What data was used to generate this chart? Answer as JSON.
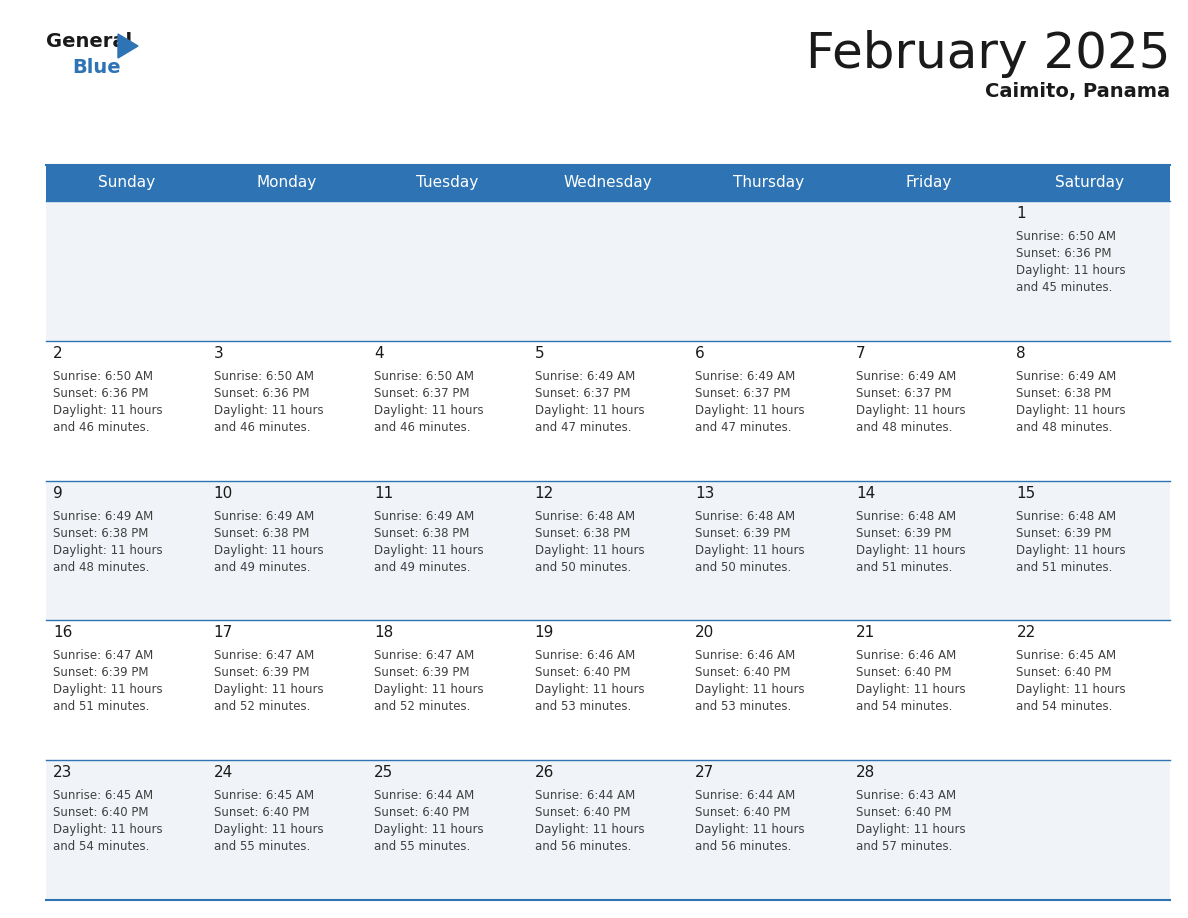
{
  "title": "February 2025",
  "subtitle": "Caimito, Panama",
  "header_bg_color": "#2e74b5",
  "header_text_color": "#ffffff",
  "border_color": "#2e74b5",
  "day_headers": [
    "Sunday",
    "Monday",
    "Tuesday",
    "Wednesday",
    "Thursday",
    "Friday",
    "Saturday"
  ],
  "title_color": "#1a1a1a",
  "subtitle_color": "#1a1a1a",
  "day_num_color": "#1a1a1a",
  "cell_text_color": "#404040",
  "row_bg_even": "#f0f4f8",
  "row_bg_odd": "#ffffff",
  "calendar": [
    [
      null,
      null,
      null,
      null,
      null,
      null,
      {
        "day": 1,
        "sunrise": "6:50 AM",
        "sunset": "6:36 PM",
        "daylight": "11 hours",
        "daylight2": "and 45 minutes."
      }
    ],
    [
      {
        "day": 2,
        "sunrise": "6:50 AM",
        "sunset": "6:36 PM",
        "daylight": "11 hours",
        "daylight2": "and 46 minutes."
      },
      {
        "day": 3,
        "sunrise": "6:50 AM",
        "sunset": "6:36 PM",
        "daylight": "11 hours",
        "daylight2": "and 46 minutes."
      },
      {
        "day": 4,
        "sunrise": "6:50 AM",
        "sunset": "6:37 PM",
        "daylight": "11 hours",
        "daylight2": "and 46 minutes."
      },
      {
        "day": 5,
        "sunrise": "6:49 AM",
        "sunset": "6:37 PM",
        "daylight": "11 hours",
        "daylight2": "and 47 minutes."
      },
      {
        "day": 6,
        "sunrise": "6:49 AM",
        "sunset": "6:37 PM",
        "daylight": "11 hours",
        "daylight2": "and 47 minutes."
      },
      {
        "day": 7,
        "sunrise": "6:49 AM",
        "sunset": "6:37 PM",
        "daylight": "11 hours",
        "daylight2": "and 48 minutes."
      },
      {
        "day": 8,
        "sunrise": "6:49 AM",
        "sunset": "6:38 PM",
        "daylight": "11 hours",
        "daylight2": "and 48 minutes."
      }
    ],
    [
      {
        "day": 9,
        "sunrise": "6:49 AM",
        "sunset": "6:38 PM",
        "daylight": "11 hours",
        "daylight2": "and 48 minutes."
      },
      {
        "day": 10,
        "sunrise": "6:49 AM",
        "sunset": "6:38 PM",
        "daylight": "11 hours",
        "daylight2": "and 49 minutes."
      },
      {
        "day": 11,
        "sunrise": "6:49 AM",
        "sunset": "6:38 PM",
        "daylight": "11 hours",
        "daylight2": "and 49 minutes."
      },
      {
        "day": 12,
        "sunrise": "6:48 AM",
        "sunset": "6:38 PM",
        "daylight": "11 hours",
        "daylight2": "and 50 minutes."
      },
      {
        "day": 13,
        "sunrise": "6:48 AM",
        "sunset": "6:39 PM",
        "daylight": "11 hours",
        "daylight2": "and 50 minutes."
      },
      {
        "day": 14,
        "sunrise": "6:48 AM",
        "sunset": "6:39 PM",
        "daylight": "11 hours",
        "daylight2": "and 51 minutes."
      },
      {
        "day": 15,
        "sunrise": "6:48 AM",
        "sunset": "6:39 PM",
        "daylight": "11 hours",
        "daylight2": "and 51 minutes."
      }
    ],
    [
      {
        "day": 16,
        "sunrise": "6:47 AM",
        "sunset": "6:39 PM",
        "daylight": "11 hours",
        "daylight2": "and 51 minutes."
      },
      {
        "day": 17,
        "sunrise": "6:47 AM",
        "sunset": "6:39 PM",
        "daylight": "11 hours",
        "daylight2": "and 52 minutes."
      },
      {
        "day": 18,
        "sunrise": "6:47 AM",
        "sunset": "6:39 PM",
        "daylight": "11 hours",
        "daylight2": "and 52 minutes."
      },
      {
        "day": 19,
        "sunrise": "6:46 AM",
        "sunset": "6:40 PM",
        "daylight": "11 hours",
        "daylight2": "and 53 minutes."
      },
      {
        "day": 20,
        "sunrise": "6:46 AM",
        "sunset": "6:40 PM",
        "daylight": "11 hours",
        "daylight2": "and 53 minutes."
      },
      {
        "day": 21,
        "sunrise": "6:46 AM",
        "sunset": "6:40 PM",
        "daylight": "11 hours",
        "daylight2": "and 54 minutes."
      },
      {
        "day": 22,
        "sunrise": "6:45 AM",
        "sunset": "6:40 PM",
        "daylight": "11 hours",
        "daylight2": "and 54 minutes."
      }
    ],
    [
      {
        "day": 23,
        "sunrise": "6:45 AM",
        "sunset": "6:40 PM",
        "daylight": "11 hours",
        "daylight2": "and 54 minutes."
      },
      {
        "day": 24,
        "sunrise": "6:45 AM",
        "sunset": "6:40 PM",
        "daylight": "11 hours",
        "daylight2": "and 55 minutes."
      },
      {
        "day": 25,
        "sunrise": "6:44 AM",
        "sunset": "6:40 PM",
        "daylight": "11 hours",
        "daylight2": "and 55 minutes."
      },
      {
        "day": 26,
        "sunrise": "6:44 AM",
        "sunset": "6:40 PM",
        "daylight": "11 hours",
        "daylight2": "and 56 minutes."
      },
      {
        "day": 27,
        "sunrise": "6:44 AM",
        "sunset": "6:40 PM",
        "daylight": "11 hours",
        "daylight2": "and 56 minutes."
      },
      {
        "day": 28,
        "sunrise": "6:43 AM",
        "sunset": "6:40 PM",
        "daylight": "11 hours",
        "daylight2": "and 57 minutes."
      },
      null
    ]
  ]
}
